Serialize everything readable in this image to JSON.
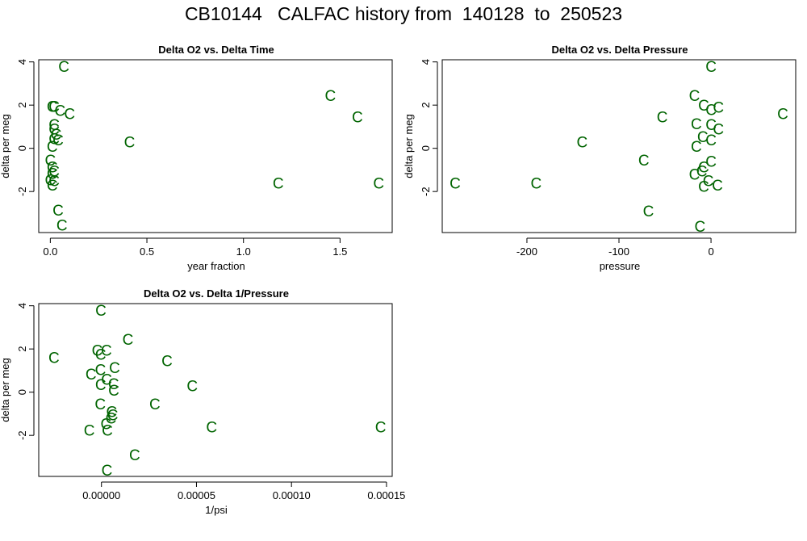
{
  "page_title": "CB10144   CALFAC history from  140128  to  250523",
  "colors": {
    "point": "#006400",
    "axis": "#000000",
    "background": "#ffffff"
  },
  "marker": "C",
  "chart_data": [
    {
      "type": "scatter",
      "title": "Delta O2 vs. Delta Time",
      "xlabel": "year fraction",
      "ylabel": "delta per meg",
      "xlim": [
        -0.06,
        1.77
      ],
      "ylim": [
        -3.9,
        4.1
      ],
      "xticks": [
        0.0,
        0.5,
        1.0,
        1.5
      ],
      "xtick_labels": [
        "0.0",
        "0.5",
        "1.0",
        "1.5"
      ],
      "yticks": [
        -2,
        0,
        2,
        4
      ],
      "ytick_labels": [
        "-2",
        "0",
        "2",
        "4"
      ],
      "x": [
        0.07,
        0.01,
        0.02,
        0.05,
        0.1,
        0.02,
        0.02,
        0.03,
        0.02,
        0.04,
        0.01,
        0.0,
        0.01,
        0.02,
        0.01,
        0.0,
        0.01,
        0.02,
        0.04,
        0.06,
        1.45,
        1.59,
        1.18,
        1.7,
        0.41
      ],
      "y": [
        3.75,
        1.9,
        1.9,
        1.7,
        1.55,
        1.05,
        0.85,
        0.6,
        0.4,
        0.35,
        0.05,
        -0.6,
        -0.9,
        -1.1,
        -1.2,
        -1.5,
        -1.75,
        -1.55,
        -2.9,
        -3.6,
        2.4,
        1.4,
        -1.65,
        -1.65,
        0.25
      ]
    },
    {
      "type": "scatter",
      "title": "Delta O2 vs. Delta Pressure",
      "xlabel": "pressure",
      "ylabel": "delta per meg",
      "xlim": [
        -292,
        92
      ],
      "ylim": [
        -3.9,
        4.1
      ],
      "xticks": [
        -200,
        -100,
        0
      ],
      "xtick_labels": [
        "-200",
        "-100",
        "0"
      ],
      "yticks": [
        -2,
        0,
        2,
        4
      ],
      "ytick_labels": [
        "-2",
        "0",
        "2",
        "4"
      ],
      "x": [
        0,
        -18,
        -8,
        0,
        8,
        -53,
        -16,
        0,
        8,
        -9,
        0,
        -16,
        -140,
        -73,
        0,
        -8,
        -10,
        -18,
        -3,
        -8,
        7,
        -68,
        -12,
        -190,
        -278,
        78
      ],
      "y": [
        3.75,
        2.4,
        1.95,
        1.75,
        1.85,
        1.4,
        1.1,
        1.05,
        0.85,
        0.5,
        0.35,
        0.05,
        0.25,
        -0.6,
        -0.65,
        -0.9,
        -1.1,
        -1.25,
        -1.55,
        -1.8,
        -1.75,
        -2.95,
        -3.65,
        -1.65,
        -1.65,
        1.55
      ]
    },
    {
      "type": "scatter",
      "title": "Delta O2 vs. Delta 1/Pressure",
      "xlabel": "1/psi",
      "ylabel": "delta per meg",
      "xlim": [
        -3.3e-05,
        0.000153
      ],
      "ylim": [
        -3.9,
        4.1
      ],
      "xticks": [
        0.0,
        5e-05,
        0.0001,
        0.00015
      ],
      "xtick_labels": [
        "0.00000",
        "0.00005",
        "0.00010",
        "0.00015"
      ],
      "yticks": [
        -2,
        0,
        2,
        4
      ],
      "ytick_labels": [
        "-2",
        "0",
        "2",
        "4"
      ],
      "x": [
        -2.5e-05,
        -3e-07,
        1.39e-05,
        -2.2e-06,
        2.6e-06,
        -4e-07,
        3.45e-05,
        6.9e-06,
        -5e-07,
        -5.5e-06,
        2.7e-06,
        6.4e-06,
        -4e-07,
        6.5e-06,
        4.78e-05,
        2.81e-05,
        -6e-07,
        5.4e-06,
        5.9e-06,
        5e-06,
        2.4e-06,
        -6.4e-06,
        3.1e-06,
        5.8e-05,
        0.0001469,
        1.75e-05,
        2.9e-06
      ],
      "y": [
        1.55,
        3.75,
        2.4,
        1.9,
        1.9,
        1.7,
        1.4,
        1.1,
        1.0,
        0.8,
        0.55,
        0.35,
        0.3,
        0.05,
        0.25,
        -0.6,
        -0.6,
        -0.95,
        -1.1,
        -1.25,
        -1.5,
        -1.8,
        -1.8,
        -1.65,
        -1.65,
        -2.95,
        -3.65
      ]
    }
  ]
}
